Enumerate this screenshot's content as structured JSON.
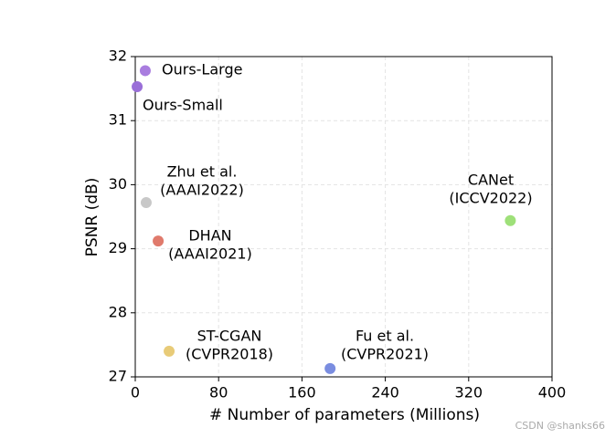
{
  "chart_data": {
    "type": "scatter",
    "xlabel": "# Number of parameters (Millions)",
    "ylabel": "PSNR (dB)",
    "xlim": [
      0,
      400
    ],
    "xticks": [
      0,
      80,
      160,
      240,
      320,
      400
    ],
    "ylim": [
      27,
      32
    ],
    "yticks": [
      27,
      28,
      29,
      30,
      31,
      32
    ],
    "grid": true,
    "points": [
      {
        "label": [
          "Ours-Large"
        ],
        "x": 9.6,
        "y": 31.78,
        "color": "#a97ddf"
      },
      {
        "label": [
          "Ours-Small"
        ],
        "x": 1.8,
        "y": 31.53,
        "color": "#9a6fd8"
      },
      {
        "label": [
          "Zhu et al.",
          "(AAAI2022)"
        ],
        "x": 10.5,
        "y": 29.72,
        "color": "#c8c8c8"
      },
      {
        "label": [
          "DHAN",
          "(AAAI2021)"
        ],
        "x": 22,
        "y": 29.12,
        "color": "#e07a6c"
      },
      {
        "label": [
          "ST-CGAN",
          "(CVPR2018)"
        ],
        "x": 32.5,
        "y": 27.4,
        "color": "#e8cb78"
      },
      {
        "label": [
          "Fu et al.",
          "(CVPR2021)"
        ],
        "x": 187,
        "y": 27.13,
        "color": "#7a8de0"
      },
      {
        "label": [
          "CANet",
          "(ICCV2022)"
        ],
        "x": 360,
        "y": 29.44,
        "color": "#9ee079"
      }
    ],
    "watermark": "CSDN @shanks66"
  }
}
